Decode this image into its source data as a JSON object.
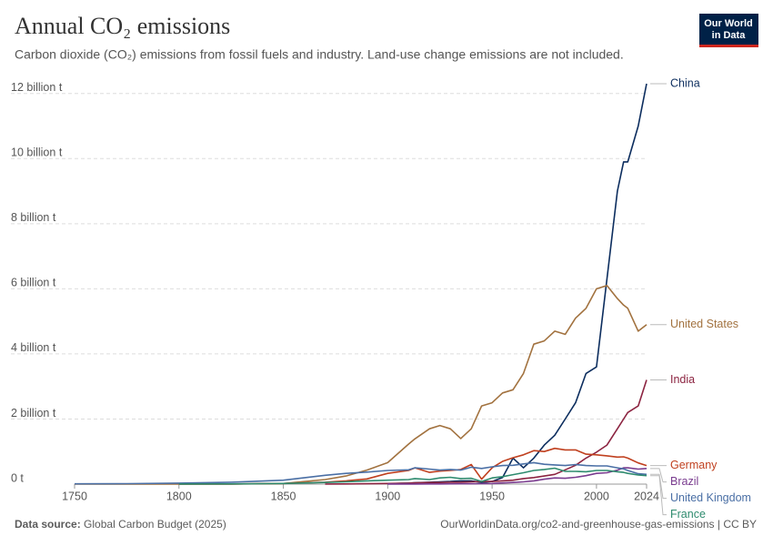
{
  "chart_data": {
    "type": "line",
    "title": "Annual CO₂ emissions",
    "subtitle": "Carbon dioxide (CO₂) emissions from fossil fuels and industry. Land-use change emissions are not included.",
    "logo": [
      "Our World",
      "in Data"
    ],
    "source_label": "Data source:",
    "source": "Global Carbon Budget (2025)",
    "credit": "OurWorldinData.org/co2-and-greenhouse-gas-emissions | CC BY",
    "grid": true,
    "xlim": [
      1750,
      2024
    ],
    "xticks": [
      1750,
      1800,
      1850,
      1900,
      1950,
      2000,
      2024
    ],
    "ylim": [
      0,
      12.3
    ],
    "yticks": [
      {
        "value": 0,
        "label": "0 t"
      },
      {
        "value": 2,
        "label": "2 billion t"
      },
      {
        "value": 4,
        "label": "4 billion t"
      },
      {
        "value": 6,
        "label": "6 billion t"
      },
      {
        "value": 8,
        "label": "8 billion t"
      },
      {
        "value": 10,
        "label": "10 billion t"
      },
      {
        "value": 12,
        "label": "12 billion t"
      }
    ],
    "x": [
      1750,
      1775,
      1800,
      1825,
      1850,
      1870,
      1880,
      1890,
      1900,
      1910,
      1913,
      1920,
      1925,
      1930,
      1935,
      1940,
      1945,
      1950,
      1955,
      1960,
      1965,
      1970,
      1975,
      1980,
      1985,
      1990,
      1995,
      2000,
      2005,
      2010,
      2013,
      2015,
      2020,
      2024
    ],
    "series": [
      {
        "name": "China",
        "color": "#0c2d5e",
        "values": [
          null,
          null,
          null,
          null,
          null,
          null,
          null,
          null,
          0.01,
          0.03,
          0.04,
          0.06,
          0.07,
          0.08,
          0.1,
          0.1,
          0.05,
          0.08,
          0.2,
          0.8,
          0.5,
          0.8,
          1.2,
          1.5,
          2.0,
          2.5,
          3.4,
          3.6,
          6.3,
          9.0,
          9.9,
          9.9,
          11.0,
          12.3
        ]
      },
      {
        "name": "United States",
        "color": "#a2723f",
        "values": [
          0,
          0.0003,
          0.0025,
          0.005,
          0.02,
          0.14,
          0.25,
          0.43,
          0.66,
          1.23,
          1.39,
          1.7,
          1.8,
          1.7,
          1.4,
          1.7,
          2.4,
          2.5,
          2.8,
          2.9,
          3.4,
          4.3,
          4.4,
          4.7,
          4.6,
          5.1,
          5.4,
          6.0,
          6.1,
          5.7,
          5.5,
          5.4,
          4.7,
          4.9
        ]
      },
      {
        "name": "India",
        "color": "#8c2441",
        "values": [
          null,
          null,
          null,
          null,
          null,
          0.002,
          0.005,
          0.01,
          0.02,
          0.03,
          0.04,
          0.05,
          0.05,
          0.06,
          0.06,
          0.07,
          0.08,
          0.08,
          0.1,
          0.12,
          0.17,
          0.2,
          0.25,
          0.3,
          0.44,
          0.58,
          0.8,
          0.98,
          1.2,
          1.7,
          2.0,
          2.2,
          2.4,
          3.2
        ]
      },
      {
        "name": "Germany",
        "color": "#c0401f",
        "values": [
          null,
          null,
          0.0006,
          0.003,
          0.02,
          0.06,
          0.1,
          0.16,
          0.33,
          0.42,
          0.5,
          0.36,
          0.4,
          0.42,
          0.45,
          0.6,
          0.15,
          0.5,
          0.7,
          0.81,
          0.9,
          1.03,
          1.0,
          1.1,
          1.05,
          1.05,
          0.92,
          0.9,
          0.87,
          0.83,
          0.84,
          0.8,
          0.65,
          0.57
        ]
      },
      {
        "name": "Brazil",
        "color": "#7a3c8f",
        "values": [
          null,
          null,
          null,
          null,
          null,
          null,
          null,
          null,
          0.002,
          0.003,
          0.004,
          0.005,
          0.006,
          0.008,
          0.01,
          0.012,
          0.015,
          0.02,
          0.035,
          0.05,
          0.07,
          0.1,
          0.15,
          0.19,
          0.18,
          0.21,
          0.26,
          0.33,
          0.35,
          0.43,
          0.5,
          0.5,
          0.46,
          0.48
        ]
      },
      {
        "name": "United Kingdom",
        "color": "#4a6fa5",
        "values": [
          0.009,
          0.015,
          0.03,
          0.06,
          0.12,
          0.27,
          0.33,
          0.37,
          0.42,
          0.44,
          0.5,
          0.46,
          0.43,
          0.45,
          0.43,
          0.52,
          0.48,
          0.53,
          0.57,
          0.58,
          0.62,
          0.66,
          0.61,
          0.59,
          0.57,
          0.6,
          0.57,
          0.56,
          0.56,
          0.5,
          0.47,
          0.42,
          0.32,
          0.3
        ]
      },
      {
        "name": "France",
        "color": "#2e8b6e",
        "values": [
          null,
          null,
          0.002,
          0.005,
          0.02,
          0.05,
          0.07,
          0.1,
          0.12,
          0.14,
          0.17,
          0.14,
          0.19,
          0.21,
          0.17,
          0.18,
          0.08,
          0.19,
          0.23,
          0.29,
          0.35,
          0.42,
          0.45,
          0.49,
          0.39,
          0.39,
          0.38,
          0.42,
          0.42,
          0.38,
          0.36,
          0.33,
          0.28,
          0.26
        ]
      }
    ]
  }
}
